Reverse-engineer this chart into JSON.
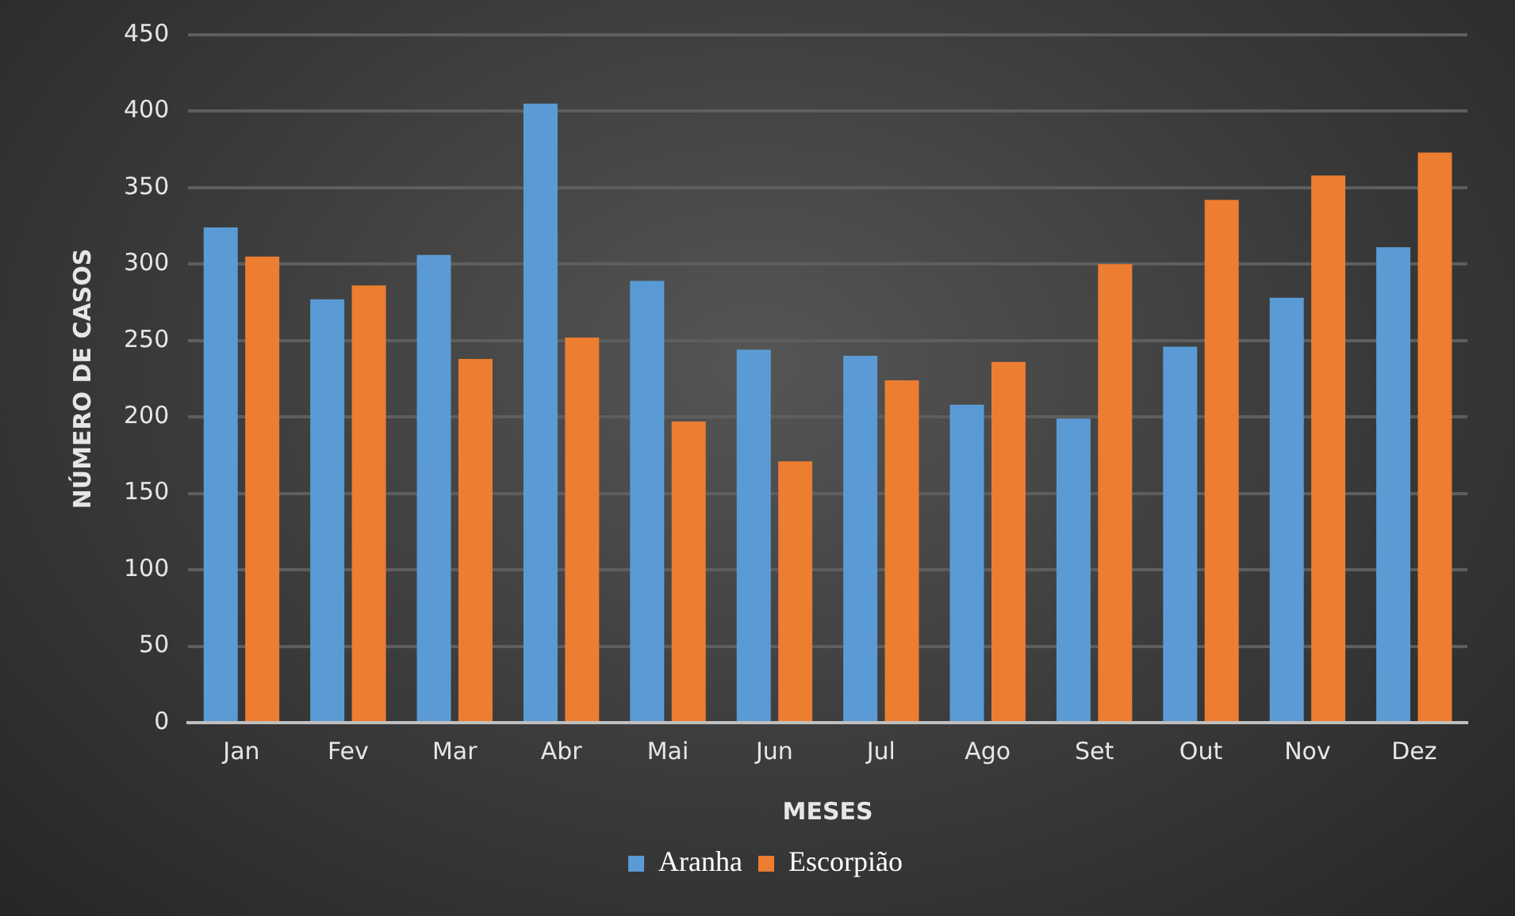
{
  "chart_data": {
    "type": "bar",
    "xlabel": "MESES",
    "ylabel": "NÚMERO DE CASOS",
    "categories": [
      "Jan",
      "Fev",
      "Mar",
      "Abr",
      "Mai",
      "Jun",
      "Jul",
      "Ago",
      "Set",
      "Out",
      "Nov",
      "Dez"
    ],
    "series": [
      {
        "name": "Aranha",
        "color": "#5b9bd5",
        "values": [
          324,
          277,
          306,
          405,
          289,
          244,
          240,
          208,
          199,
          246,
          278,
          311
        ]
      },
      {
        "name": "Escorpião",
        "color": "#ed7d31",
        "values": [
          305,
          286,
          238,
          252,
          197,
          171,
          224,
          236,
          300,
          342,
          358,
          373
        ]
      }
    ],
    "ylim": [
      0,
      450
    ],
    "yticks": [
      0,
      50,
      100,
      150,
      200,
      250,
      300,
      350,
      400,
      450
    ],
    "grid": "y",
    "legend": "bottom"
  }
}
